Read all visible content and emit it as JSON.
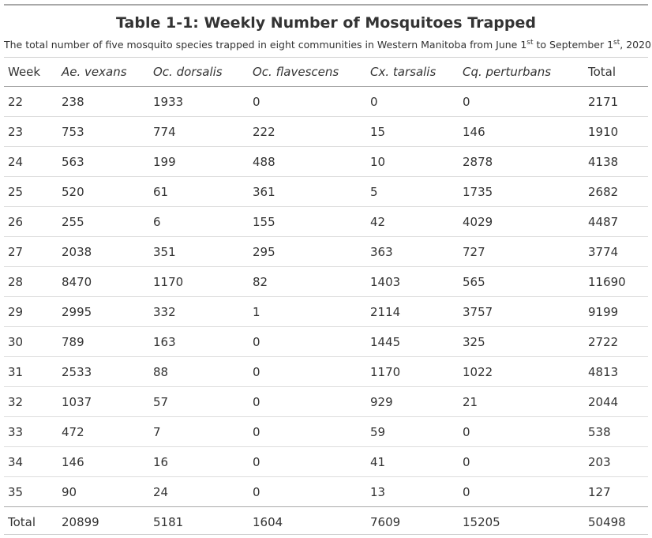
{
  "table": {
    "title": "Table 1-1: Weekly Number of Mosquitoes Trapped",
    "subtitle": {
      "part1": "The total number of five mosquito species trapped in eight communities in Western Manitoba from June 1",
      "sup1": "st",
      "part2": " to September 1",
      "sup2": "st",
      "part3": ", 2020"
    },
    "headers": [
      "Week",
      "Ae. vexans",
      "Oc. dorsalis",
      "Oc. flavescens",
      "Cx. tarsalis",
      "Cq. perturbans",
      "Total"
    ],
    "rows": [
      [
        "22",
        "238",
        "1933",
        "0",
        "0",
        "0",
        "2171"
      ],
      [
        "23",
        "753",
        "774",
        "222",
        "15",
        "146",
        "1910"
      ],
      [
        "24",
        "563",
        "199",
        "488",
        "10",
        "2878",
        "4138"
      ],
      [
        "25",
        "520",
        "61",
        "361",
        "5",
        "1735",
        "2682"
      ],
      [
        "26",
        "255",
        "6",
        "155",
        "42",
        "4029",
        "4487"
      ],
      [
        "27",
        "2038",
        "351",
        "295",
        "363",
        "727",
        "3774"
      ],
      [
        "28",
        "8470",
        "1170",
        "82",
        "1403",
        "565",
        "11690"
      ],
      [
        "29",
        "2995",
        "332",
        "1",
        "2114",
        "3757",
        "9199"
      ],
      [
        "30",
        "789",
        "163",
        "0",
        "1445",
        "325",
        "2722"
      ],
      [
        "31",
        "2533",
        "88",
        "0",
        "1170",
        "1022",
        "4813"
      ],
      [
        "32",
        "1037",
        "57",
        "0",
        "929",
        "21",
        "2044"
      ],
      [
        "33",
        "472",
        "7",
        "0",
        "59",
        "0",
        "538"
      ],
      [
        "34",
        "146",
        "16",
        "0",
        "41",
        "0",
        "203"
      ],
      [
        "35",
        "90",
        "24",
        "0",
        "13",
        "0",
        "127"
      ]
    ],
    "total_row": [
      "Total",
      "20899",
      "5181",
      "1604",
      "7609",
      "15205",
      "50498"
    ]
  }
}
